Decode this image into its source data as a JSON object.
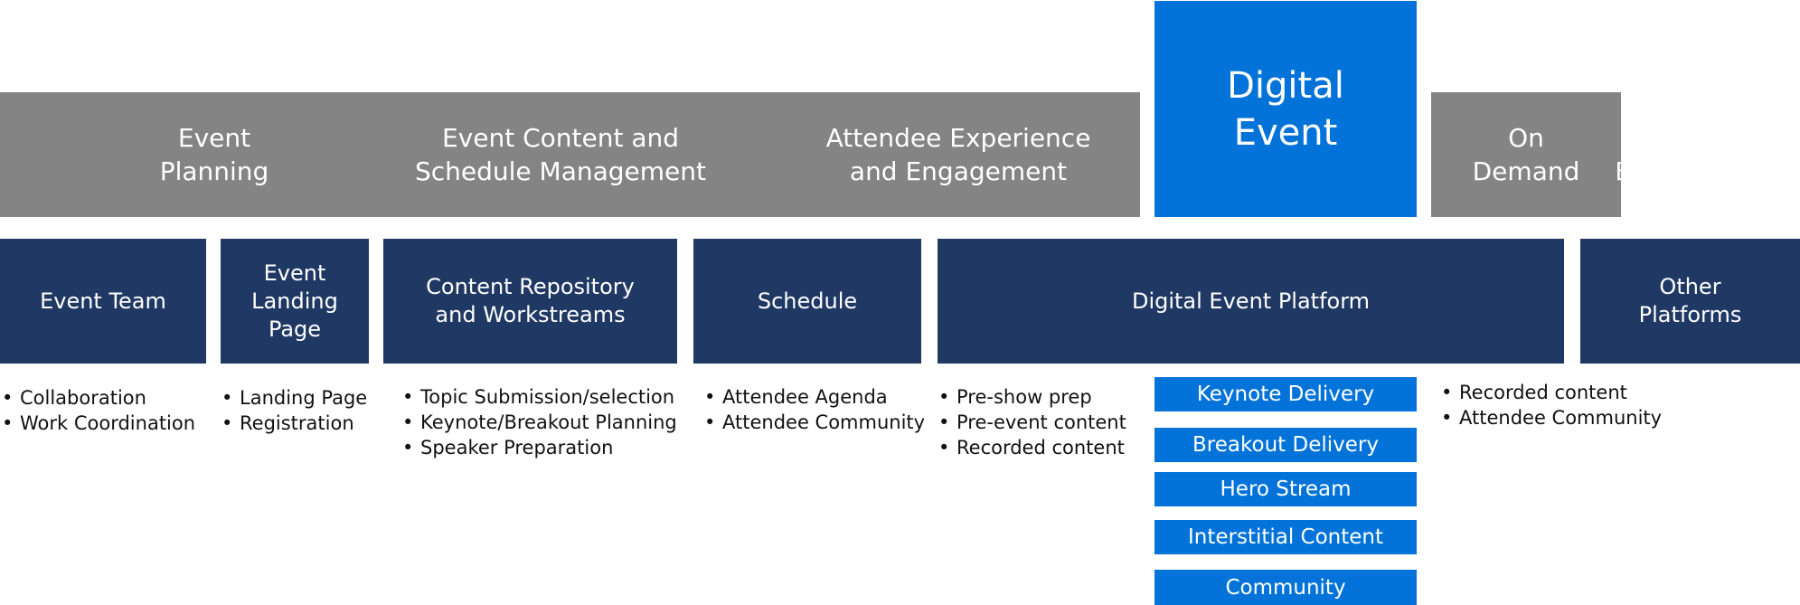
{
  "phases": {
    "event_planning": "Event\nPlanning",
    "content_schedule": "Event Content and\nSchedule Management",
    "attendee_experience": "Attendee Experience\nand Engagement",
    "digital_event": "Digital\nEvent",
    "on_demand": "On\nDemand",
    "ongoing_engagement": "Ongoing\nEngagement"
  },
  "categories": {
    "event_team": "Event Team",
    "landing_page": "Event\nLanding\nPage",
    "content_repository": "Content Repository\nand Workstreams",
    "schedule": "Schedule",
    "platform": "Digital Event Platform",
    "other_platforms": "Other\nPlatforms"
  },
  "details": {
    "event_team": [
      "Collaboration",
      "Work Coordination"
    ],
    "landing_page": [
      "Landing Page",
      "Registration"
    ],
    "content_repository": [
      "Topic Submission/selection",
      "Keynote/Breakout Planning",
      "Speaker Preparation"
    ],
    "schedule": [
      "Attendee Agenda",
      "Attendee Community"
    ],
    "platform": [
      "Pre-show prep",
      "Pre-event content",
      "Recorded content"
    ],
    "other_platforms": [
      "Recorded content",
      "Attendee Community"
    ]
  },
  "delivery": [
    "Keynote Delivery",
    "Breakout Delivery",
    "Hero Stream",
    "Interstitial Content",
    "Community"
  ],
  "colors": {
    "phase_gray": "#848484",
    "hero_blue": "#0373d9",
    "category_navy": "#203864",
    "text_white": "#ffffff",
    "text_dark": "#111111"
  }
}
